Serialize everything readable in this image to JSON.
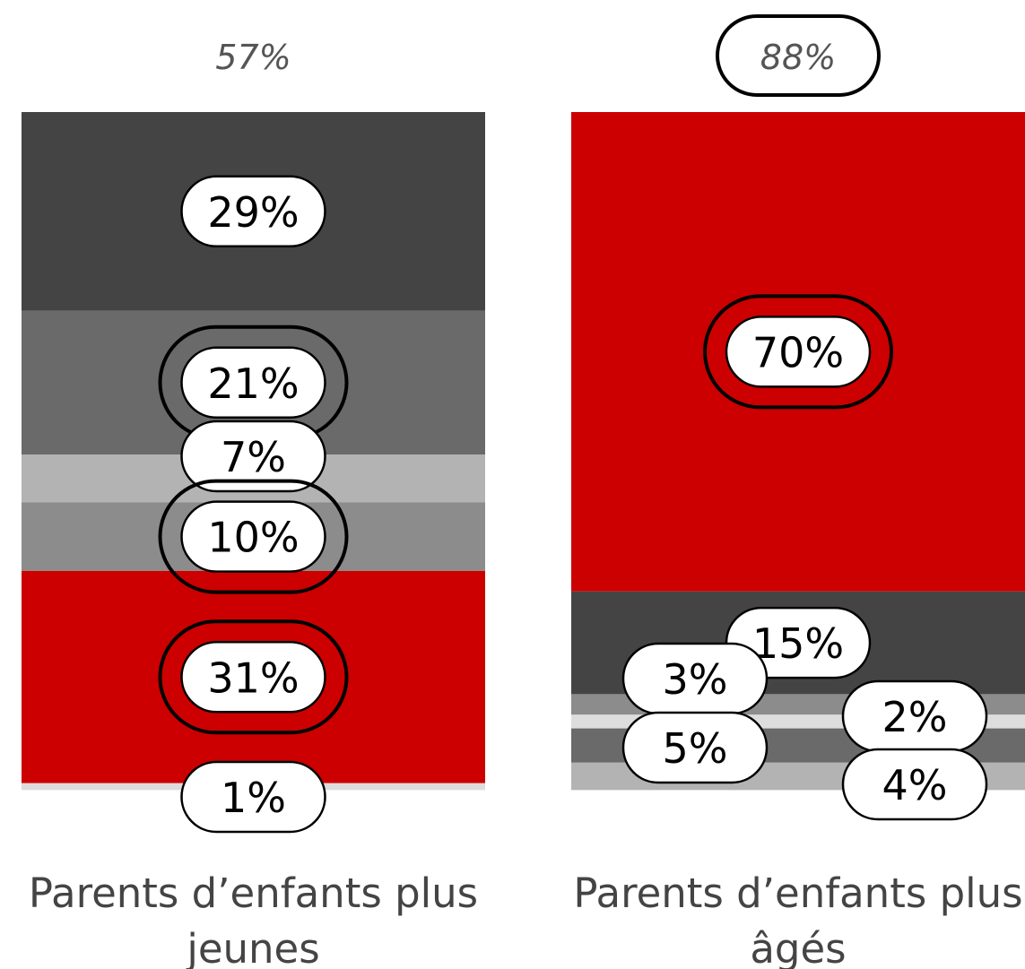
{
  "chart_data": {
    "type": "bar",
    "subtype": "stacked-100",
    "categories": [
      "Parents d’enfants plus jeunes",
      "Parents d’enfants plus âgés"
    ],
    "category_label_lines": [
      [
        "Parents d’enfants plus",
        "jeunes"
      ],
      [
        "Parents d’enfants plus",
        "âgés"
      ]
    ],
    "totals": [
      "57%",
      "88%"
    ],
    "total_highlighted": [
      false,
      true
    ],
    "segment_order": "top-to-bottom",
    "bars": [
      {
        "segments": [
          {
            "value": 29,
            "label": "29%",
            "color": "#444444",
            "highlighted": false,
            "label_side": "center"
          },
          {
            "value": 21,
            "label": "21%",
            "color": "#6a6a6a",
            "highlighted": true,
            "label_side": "center"
          },
          {
            "value": 7,
            "label": "7%",
            "color": "#b3b3b3",
            "highlighted": false,
            "label_side": "center"
          },
          {
            "value": 10,
            "label": "10%",
            "color": "#8c8c8c",
            "highlighted": true,
            "label_side": "center"
          },
          {
            "value": 31,
            "label": "31%",
            "color": "#cc0000",
            "highlighted": true,
            "label_side": "center"
          },
          {
            "value": 1,
            "label": "1%",
            "color": "#dddddd",
            "highlighted": false,
            "label_side": "center"
          }
        ]
      },
      {
        "segments": [
          {
            "value": 70,
            "label": "70%",
            "color": "#cc0000",
            "highlighted": true,
            "label_side": "center"
          },
          {
            "value": 15,
            "label": "15%",
            "color": "#444444",
            "highlighted": false,
            "label_side": "center"
          },
          {
            "value": 3,
            "label": "3%",
            "color": "#8c8c8c",
            "highlighted": false,
            "label_side": "left"
          },
          {
            "value": 2,
            "label": "2%",
            "color": "#dddddd",
            "highlighted": false,
            "label_side": "right"
          },
          {
            "value": 5,
            "label": "5%",
            "color": "#6a6a6a",
            "highlighted": false,
            "label_side": "left"
          },
          {
            "value": 4,
            "label": "4%",
            "color": "#b3b3b3",
            "highlighted": false,
            "label_side": "right"
          }
        ]
      }
    ],
    "ylim": [
      0,
      100
    ],
    "legend": "none",
    "grid": false
  }
}
